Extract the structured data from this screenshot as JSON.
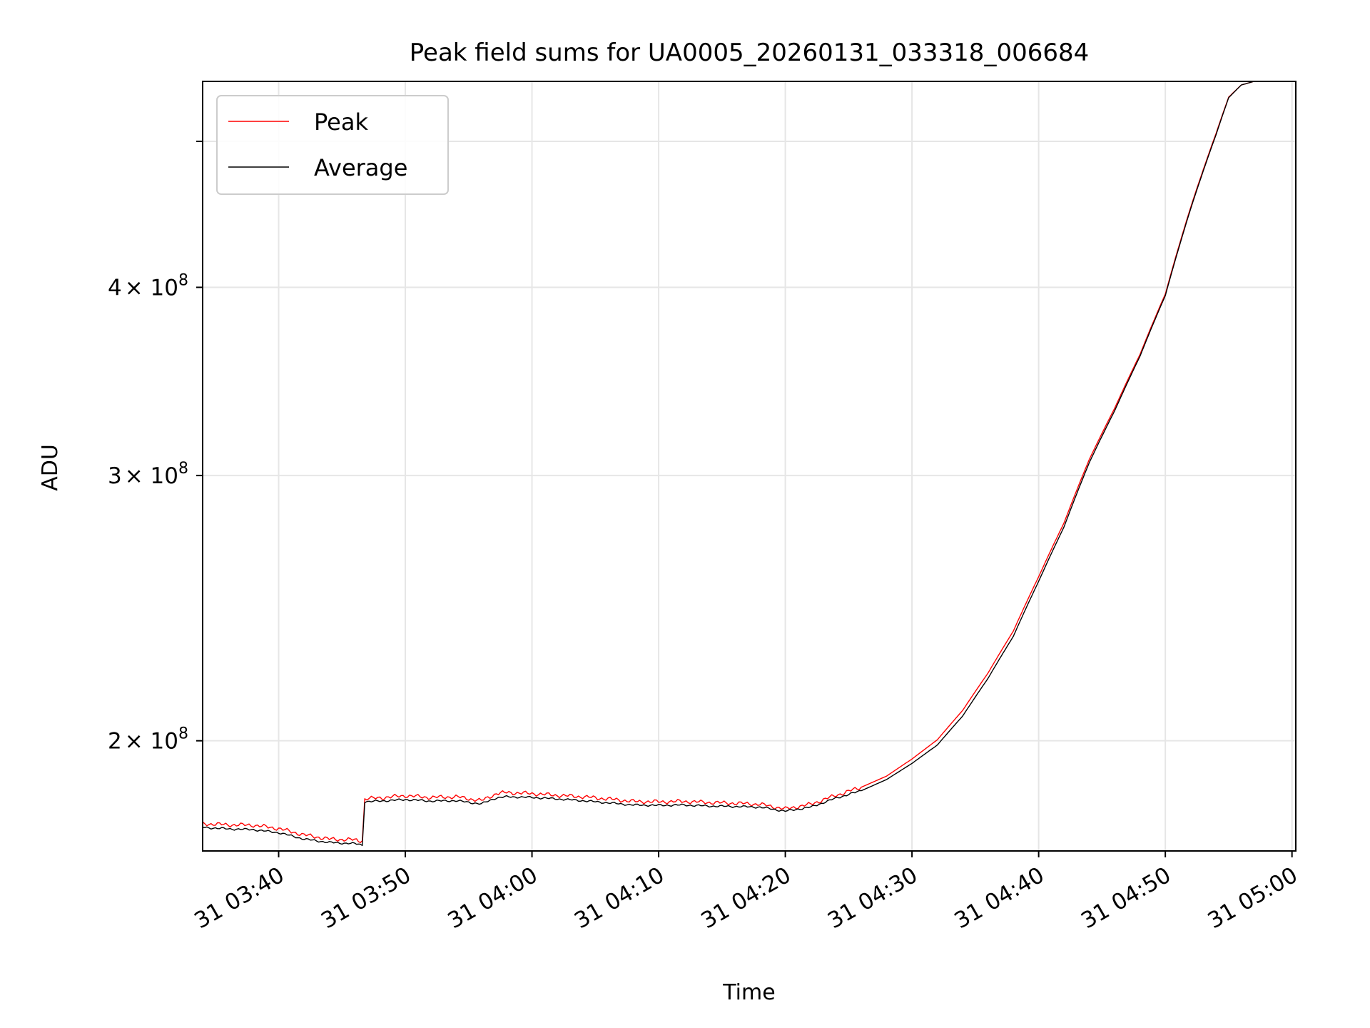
{
  "chart_data": {
    "type": "line",
    "title": "Peak field sums for UA0005_20260131_033318_006684",
    "xlabel": "Time",
    "ylabel": "ADU",
    "y_scale": "log",
    "ylim": [
      169000000,
      548000000
    ],
    "xlim_minutes_after_03_00": [
      34.0,
      120.3
    ],
    "grid": true,
    "legend_position": "upper-left",
    "x_ticks": [
      {
        "minute": 40,
        "label": "31 03:40"
      },
      {
        "minute": 50,
        "label": "31 03:50"
      },
      {
        "minute": 60,
        "label": "31 04:00"
      },
      {
        "minute": 70,
        "label": "31 04:10"
      },
      {
        "minute": 80,
        "label": "31 04:20"
      },
      {
        "minute": 90,
        "label": "31 04:30"
      },
      {
        "minute": 100,
        "label": "31 04:40"
      },
      {
        "minute": 110,
        "label": "31 04:50"
      },
      {
        "minute": 120,
        "label": "31 05:00"
      }
    ],
    "y_ticks": [
      {
        "value": 200000000,
        "mantissa": "2",
        "base": "× 10",
        "exponent": "8"
      },
      {
        "value": 300000000,
        "mantissa": "3",
        "base": "× 10",
        "exponent": "8"
      },
      {
        "value": 400000000,
        "mantissa": "4",
        "base": "× 10",
        "exponent": "8"
      },
      {
        "value": 500000000,
        "mantissa": "",
        "base": "",
        "exponent": ""
      }
    ],
    "series": [
      {
        "name": "Peak",
        "color": "#ff0000",
        "x": [
          34,
          36,
          38,
          40,
          42,
          44,
          46,
          46.6,
          46.8,
          48,
          50,
          52,
          54,
          56,
          57.2,
          58,
          60,
          62,
          64,
          66,
          68,
          70,
          72,
          74,
          76,
          78,
          80,
          82,
          84,
          86,
          88,
          90,
          92,
          94,
          96,
          98,
          100,
          102,
          104,
          106,
          108,
          110,
          112,
          114,
          115,
          116,
          117,
          118,
          120
        ],
        "values": [
          176200000,
          175900000,
          175800000,
          174900000,
          173200000,
          172100000,
          171900000,
          171600000,
          183000000,
          183300000,
          183900000,
          183400000,
          183600000,
          182500000,
          184500000,
          184800000,
          184500000,
          184000000,
          183600000,
          183000000,
          182300000,
          182200000,
          182300000,
          182000000,
          181800000,
          181500000,
          180200000,
          181500000,
          184000000,
          186300000,
          189500000,
          194500000,
          200300000,
          209500000,
          221800000,
          236500000,
          257000000,
          279000000,
          307500000,
          332500000,
          361000000,
          396000000,
          452000000,
          506000000,
          535000000,
          545000000,
          548000000,
          548000000,
          548000000
        ]
      },
      {
        "name": "Average",
        "color": "#000000",
        "x": [
          34,
          36,
          38,
          40,
          42,
          44,
          46,
          46.6,
          46.8,
          48,
          50,
          52,
          54,
          56,
          57.2,
          58,
          60,
          62,
          64,
          66,
          68,
          70,
          72,
          74,
          76,
          78,
          80,
          82,
          84,
          86,
          88,
          90,
          92,
          94,
          96,
          98,
          100,
          102,
          104,
          106,
          108,
          110,
          112,
          114,
          115,
          116,
          117,
          118,
          120
        ],
        "values": [
          175200000,
          174800000,
          174600000,
          173800000,
          172100000,
          171200000,
          170900000,
          170600000,
          182200000,
          182400000,
          182800000,
          182400000,
          182500000,
          181600000,
          183300000,
          183600000,
          183400000,
          183000000,
          182500000,
          181900000,
          181300000,
          181200000,
          181300000,
          181000000,
          180900000,
          180700000,
          179600000,
          180700000,
          183200000,
          185300000,
          188500000,
          193200000,
          198700000,
          207700000,
          220000000,
          234600000,
          255200000,
          277300000,
          306000000,
          331200000,
          360000000,
          395000000,
          451000000,
          505000000,
          534500000,
          545000000,
          548000000,
          548000000,
          548000000
        ]
      }
    ]
  }
}
